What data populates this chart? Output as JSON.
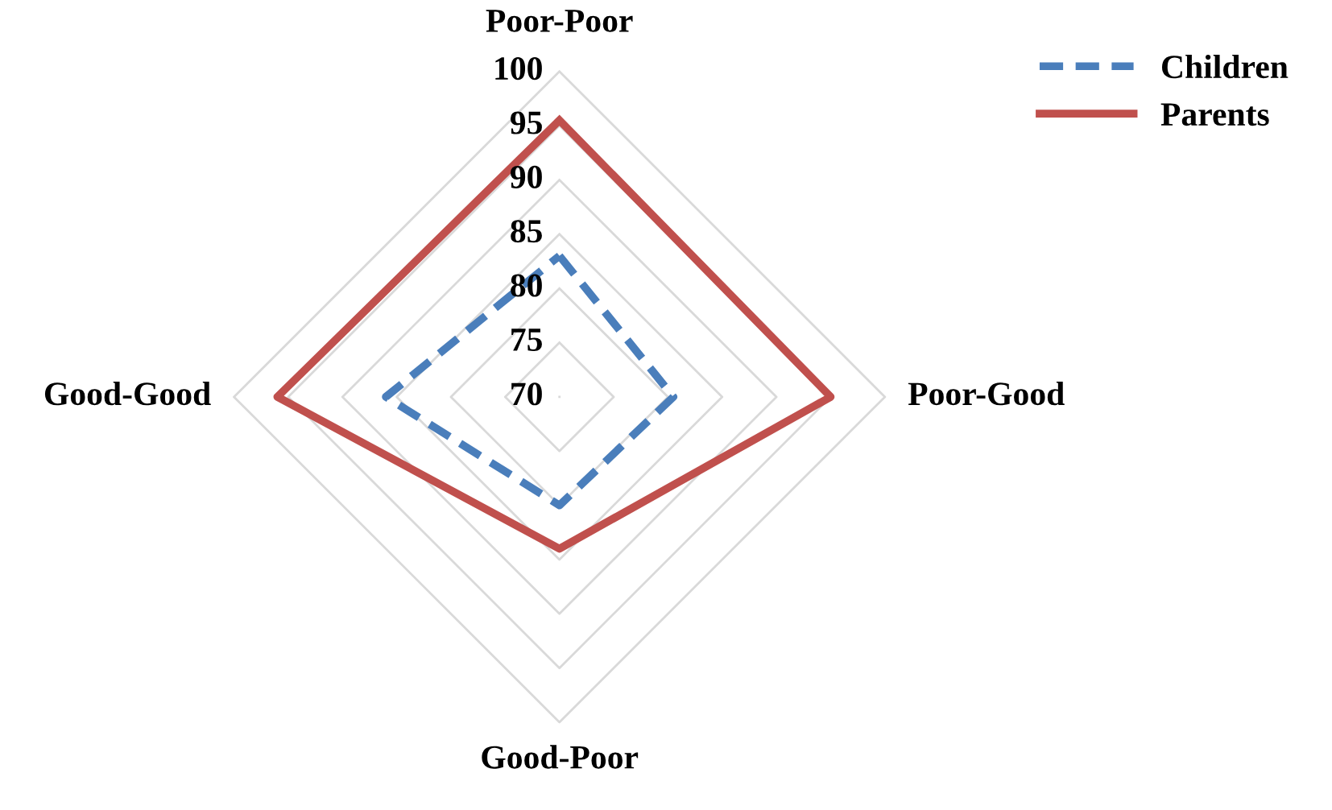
{
  "chart_data": {
    "type": "radar",
    "categories": [
      "Poor-Poor",
      "Poor-Good",
      "Good-Poor",
      "Good-Good"
    ],
    "series": [
      {
        "name": "Children",
        "color": "#4a7ebb",
        "line_style": "dashed",
        "values": [
          83,
          80.5,
          80,
          86
        ]
      },
      {
        "name": "Parents",
        "color": "#c0504d",
        "line_style": "solid",
        "values": [
          95.5,
          95,
          84,
          96
        ]
      }
    ],
    "ylim": [
      70,
      100
    ],
    "yticks": [
      70,
      75,
      80,
      85,
      90,
      95,
      100
    ],
    "legend": "top right",
    "marker": "none"
  }
}
